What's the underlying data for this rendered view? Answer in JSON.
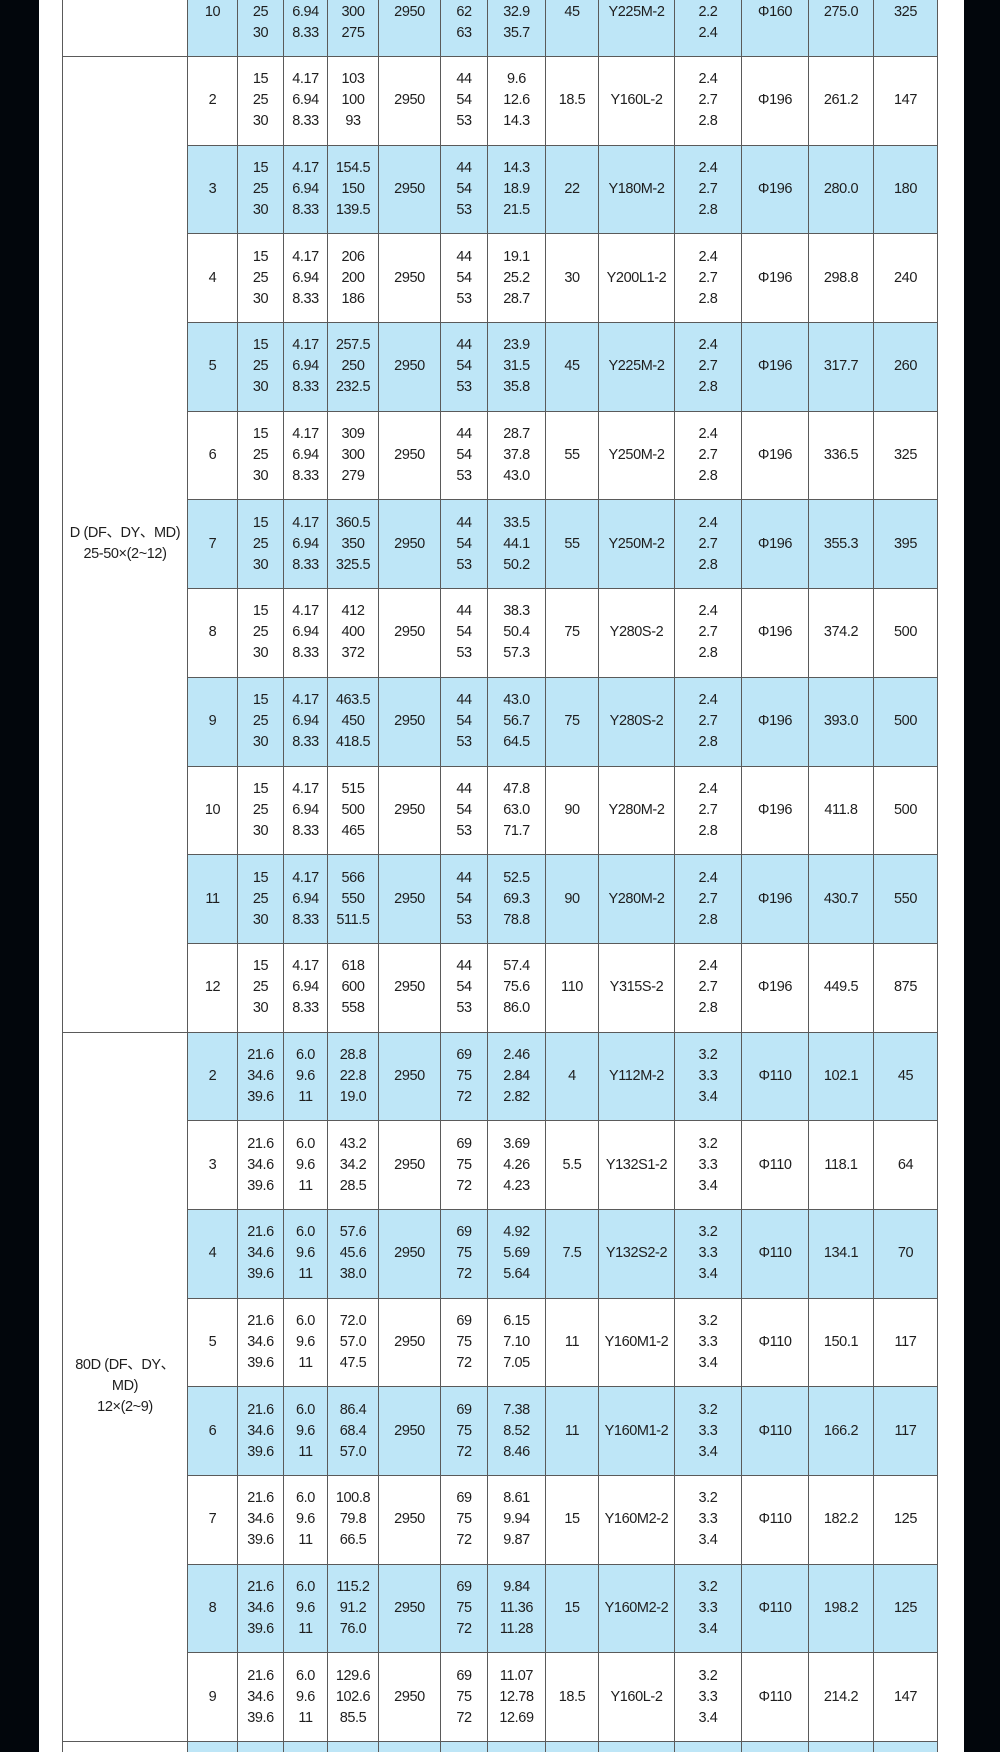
{
  "colors": {
    "row_alt": "#bee6f7",
    "row": "#ffffff",
    "frame": "#02060c",
    "border": "#5a5a5a"
  },
  "groups": [
    {
      "label": "",
      "partial": "top",
      "rows": [
        [
          "10",
          "25\n30",
          "6.94\n8.33",
          "300\n275",
          "2950",
          "62\n63",
          "32.9\n35.7",
          "45",
          "Y225M-2",
          "2.2\n2.4",
          "Φ160",
          "275.0",
          "325"
        ]
      ]
    },
    {
      "label": "D (DF、DY、MD)\n25-50×(2~12)",
      "rows": [
        [
          "2",
          "15\n25\n30",
          "4.17\n6.94\n8.33",
          "103\n100\n93",
          "2950",
          "44\n54\n53",
          "9.6\n12.6\n14.3",
          "18.5",
          "Y160L-2",
          "2.4\n2.7\n2.8",
          "Φ196",
          "261.2",
          "147"
        ],
        [
          "3",
          "15\n25\n30",
          "4.17\n6.94\n8.33",
          "154.5\n150\n139.5",
          "2950",
          "44\n54\n53",
          "14.3\n18.9\n21.5",
          "22",
          "Y180M-2",
          "2.4\n2.7\n2.8",
          "Φ196",
          "280.0",
          "180"
        ],
        [
          "4",
          "15\n25\n30",
          "4.17\n6.94\n8.33",
          "206\n200\n186",
          "2950",
          "44\n54\n53",
          "19.1\n25.2\n28.7",
          "30",
          "Y200L1-2",
          "2.4\n2.7\n2.8",
          "Φ196",
          "298.8",
          "240"
        ],
        [
          "5",
          "15\n25\n30",
          "4.17\n6.94\n8.33",
          "257.5\n250\n232.5",
          "2950",
          "44\n54\n53",
          "23.9\n31.5\n35.8",
          "45",
          "Y225M-2",
          "2.4\n2.7\n2.8",
          "Φ196",
          "317.7",
          "260"
        ],
        [
          "6",
          "15\n25\n30",
          "4.17\n6.94\n8.33",
          "309\n300\n279",
          "2950",
          "44\n54\n53",
          "28.7\n37.8\n43.0",
          "55",
          "Y250M-2",
          "2.4\n2.7\n2.8",
          "Φ196",
          "336.5",
          "325"
        ],
        [
          "7",
          "15\n25\n30",
          "4.17\n6.94\n8.33",
          "360.5\n350\n325.5",
          "2950",
          "44\n54\n53",
          "33.5\n44.1\n50.2",
          "55",
          "Y250M-2",
          "2.4\n2.7\n2.8",
          "Φ196",
          "355.3",
          "395"
        ],
        [
          "8",
          "15\n25\n30",
          "4.17\n6.94\n8.33",
          "412\n400\n372",
          "2950",
          "44\n54\n53",
          "38.3\n50.4\n57.3",
          "75",
          "Y280S-2",
          "2.4\n2.7\n2.8",
          "Φ196",
          "374.2",
          "500"
        ],
        [
          "9",
          "15\n25\n30",
          "4.17\n6.94\n8.33",
          "463.5\n450\n418.5",
          "2950",
          "44\n54\n53",
          "43.0\n56.7\n64.5",
          "75",
          "Y280S-2",
          "2.4\n2.7\n2.8",
          "Φ196",
          "393.0",
          "500"
        ],
        [
          "10",
          "15\n25\n30",
          "4.17\n6.94\n8.33",
          "515\n500\n465",
          "2950",
          "44\n54\n53",
          "47.8\n63.0\n71.7",
          "90",
          "Y280M-2",
          "2.4\n2.7\n2.8",
          "Φ196",
          "411.8",
          "500"
        ],
        [
          "11",
          "15\n25\n30",
          "4.17\n6.94\n8.33",
          "566\n550\n511.5",
          "2950",
          "44\n54\n53",
          "52.5\n69.3\n78.8",
          "90",
          "Y280M-2",
          "2.4\n2.7\n2.8",
          "Φ196",
          "430.7",
          "550"
        ],
        [
          "12",
          "15\n25\n30",
          "4.17\n6.94\n8.33",
          "618\n600\n558",
          "2950",
          "44\n54\n53",
          "57.4\n75.6\n86.0",
          "110",
          "Y315S-2",
          "2.4\n2.7\n2.8",
          "Φ196",
          "449.5",
          "875"
        ]
      ]
    },
    {
      "label": "80D (DF、DY、MD)\n12×(2~9)",
      "rows": [
        [
          "2",
          "21.6\n34.6\n39.6",
          "6.0\n9.6\n11",
          "28.8\n22.8\n19.0",
          "2950",
          "69\n75\n72",
          "2.46\n2.84\n2.82",
          "4",
          "Y112M-2",
          "3.2\n3.3\n3.4",
          "Φ110",
          "102.1",
          "45"
        ],
        [
          "3",
          "21.6\n34.6\n39.6",
          "6.0\n9.6\n11",
          "43.2\n34.2\n28.5",
          "2950",
          "69\n75\n72",
          "3.69\n4.26\n4.23",
          "5.5",
          "Y132S1-2",
          "3.2\n3.3\n3.4",
          "Φ110",
          "118.1",
          "64"
        ],
        [
          "4",
          "21.6\n34.6\n39.6",
          "6.0\n9.6\n11",
          "57.6\n45.6\n38.0",
          "2950",
          "69\n75\n72",
          "4.92\n5.69\n5.64",
          "7.5",
          "Y132S2-2",
          "3.2\n3.3\n3.4",
          "Φ110",
          "134.1",
          "70"
        ],
        [
          "5",
          "21.6\n34.6\n39.6",
          "6.0\n9.6\n11",
          "72.0\n57.0\n47.5",
          "2950",
          "69\n75\n72",
          "6.15\n7.10\n7.05",
          "11",
          "Y160M1-2",
          "3.2\n3.3\n3.4",
          "Φ110",
          "150.1",
          "117"
        ],
        [
          "6",
          "21.6\n34.6\n39.6",
          "6.0\n9.6\n11",
          "86.4\n68.4\n57.0",
          "2950",
          "69\n75\n72",
          "7.38\n8.52\n8.46",
          "11",
          "Y160M1-2",
          "3.2\n3.3\n3.4",
          "Φ110",
          "166.2",
          "117"
        ],
        [
          "7",
          "21.6\n34.6\n39.6",
          "6.0\n9.6\n11",
          "100.8\n79.8\n66.5",
          "2950",
          "69\n75\n72",
          "8.61\n9.94\n9.87",
          "15",
          "Y160M2-2",
          "3.2\n3.3\n3.4",
          "Φ110",
          "182.2",
          "125"
        ],
        [
          "8",
          "21.6\n34.6\n39.6",
          "6.0\n9.6\n11",
          "115.2\n91.2\n76.0",
          "2950",
          "69\n75\n72",
          "9.84\n11.36\n11.28",
          "15",
          "Y160M2-2",
          "3.2\n3.3\n3.4",
          "Φ110",
          "198.2",
          "125"
        ],
        [
          "9",
          "21.6\n34.6\n39.6",
          "6.0\n9.6\n11",
          "129.6\n102.6\n85.5",
          "2950",
          "69\n75\n72",
          "11.07\n12.78\n12.69",
          "18.5",
          "Y160L-2",
          "3.2\n3.3\n3.4",
          "Φ110",
          "214.2",
          "147"
        ]
      ]
    },
    {
      "label": "",
      "partial": "bottom",
      "rows": [
        [
          "",
          "",
          "",
          "",
          "",
          "",
          "",
          "",
          "",
          "",
          "",
          "",
          ""
        ]
      ]
    }
  ]
}
